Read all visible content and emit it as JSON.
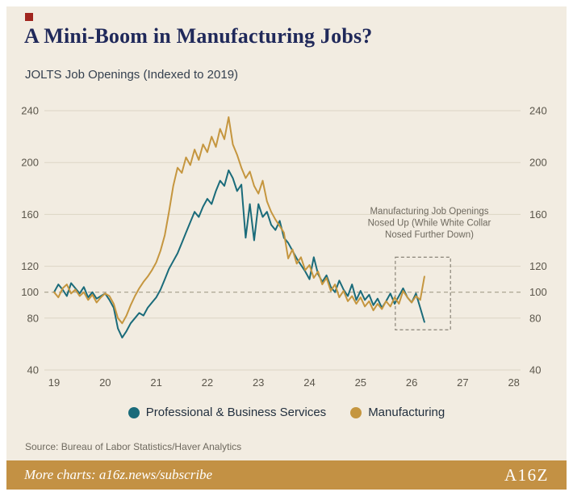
{
  "colors": {
    "background": "#f2ece1",
    "title": "#20295a",
    "brand_mark": "#a1261f",
    "grid": "#dcd5c5",
    "reference_line": "#97917e",
    "axis_text": "#5b564b",
    "annotation_text": "#6e695e",
    "footer_background": "#c39144",
    "footer_text": "#ffffff"
  },
  "source": "Source: Bureau of Labor Statistics/Haver Analytics",
  "footer": {
    "text": "More charts: a16z.news/subscribe",
    "logo": "A16Z"
  },
  "chart_data": {
    "type": "line",
    "title": "A Mini-Boom in Manufacturing Jobs?",
    "subtitle": "JOLTS Job Openings (Indexed to 2019)",
    "x_ticks": [
      "19",
      "20",
      "21",
      "22",
      "23",
      "24",
      "25",
      "26",
      "27",
      "28"
    ],
    "x_tick_years": [
      2019,
      2020,
      2021,
      2022,
      2023,
      2024,
      2025,
      2026,
      2027,
      2028
    ],
    "y_ticks": [
      40,
      80,
      100,
      120,
      160,
      200,
      240
    ],
    "ylim": [
      40,
      250
    ],
    "xlim": [
      2018.9,
      2028.1
    ],
    "grid": true,
    "legend_position": "bottom",
    "reference_line": 100,
    "x_start_year": 2019,
    "x_step_months": 1,
    "series": [
      {
        "name": "Professional & Business Services",
        "color": "#1a6b7a",
        "values": [
          100,
          106,
          102,
          97,
          107,
          103,
          99,
          104,
          96,
          100,
          95,
          97,
          99,
          94,
          88,
          72,
          65,
          70,
          76,
          80,
          84,
          82,
          88,
          92,
          96,
          102,
          110,
          118,
          124,
          130,
          138,
          146,
          154,
          162,
          158,
          166,
          172,
          168,
          178,
          186,
          182,
          194,
          188,
          178,
          183,
          142,
          168,
          140,
          168,
          158,
          162,
          152,
          148,
          155,
          142,
          138,
          132,
          126,
          121,
          116,
          110,
          127,
          114,
          108,
          113,
          104,
          100,
          109,
          102,
          97,
          106,
          94,
          101,
          94,
          98,
          90,
          95,
          88,
          93,
          99,
          91,
          97,
          103,
          96,
          92,
          99,
          88,
          77
        ]
      },
      {
        "name": "Manufacturing",
        "color": "#c5963f",
        "values": [
          100,
          96,
          103,
          106,
          99,
          102,
          97,
          100,
          94,
          98,
          92,
          96,
          99,
          97,
          91,
          80,
          76,
          82,
          90,
          97,
          103,
          108,
          112,
          117,
          123,
          132,
          144,
          162,
          182,
          196,
          192,
          204,
          198,
          210,
          202,
          214,
          208,
          220,
          212,
          226,
          218,
          235,
          214,
          206,
          196,
          188,
          193,
          182,
          176,
          186,
          170,
          162,
          156,
          151,
          146,
          126,
          133,
          122,
          127,
          117,
          121,
          111,
          116,
          106,
          111,
          101,
          106,
          96,
          101,
          93,
          97,
          91,
          96,
          89,
          93,
          86,
          91,
          87,
          93,
          89,
          96,
          91,
          101,
          96,
          92,
          97,
          94,
          112
        ]
      }
    ],
    "annotation": {
      "lines": [
        "Manufacturing Job Openings",
        "Nosed Up (While White Collar",
        "Nosed Further Down)"
      ],
      "box_x": [
        2025.68,
        2026.76
      ],
      "box_y": [
        71,
        127
      ]
    }
  }
}
